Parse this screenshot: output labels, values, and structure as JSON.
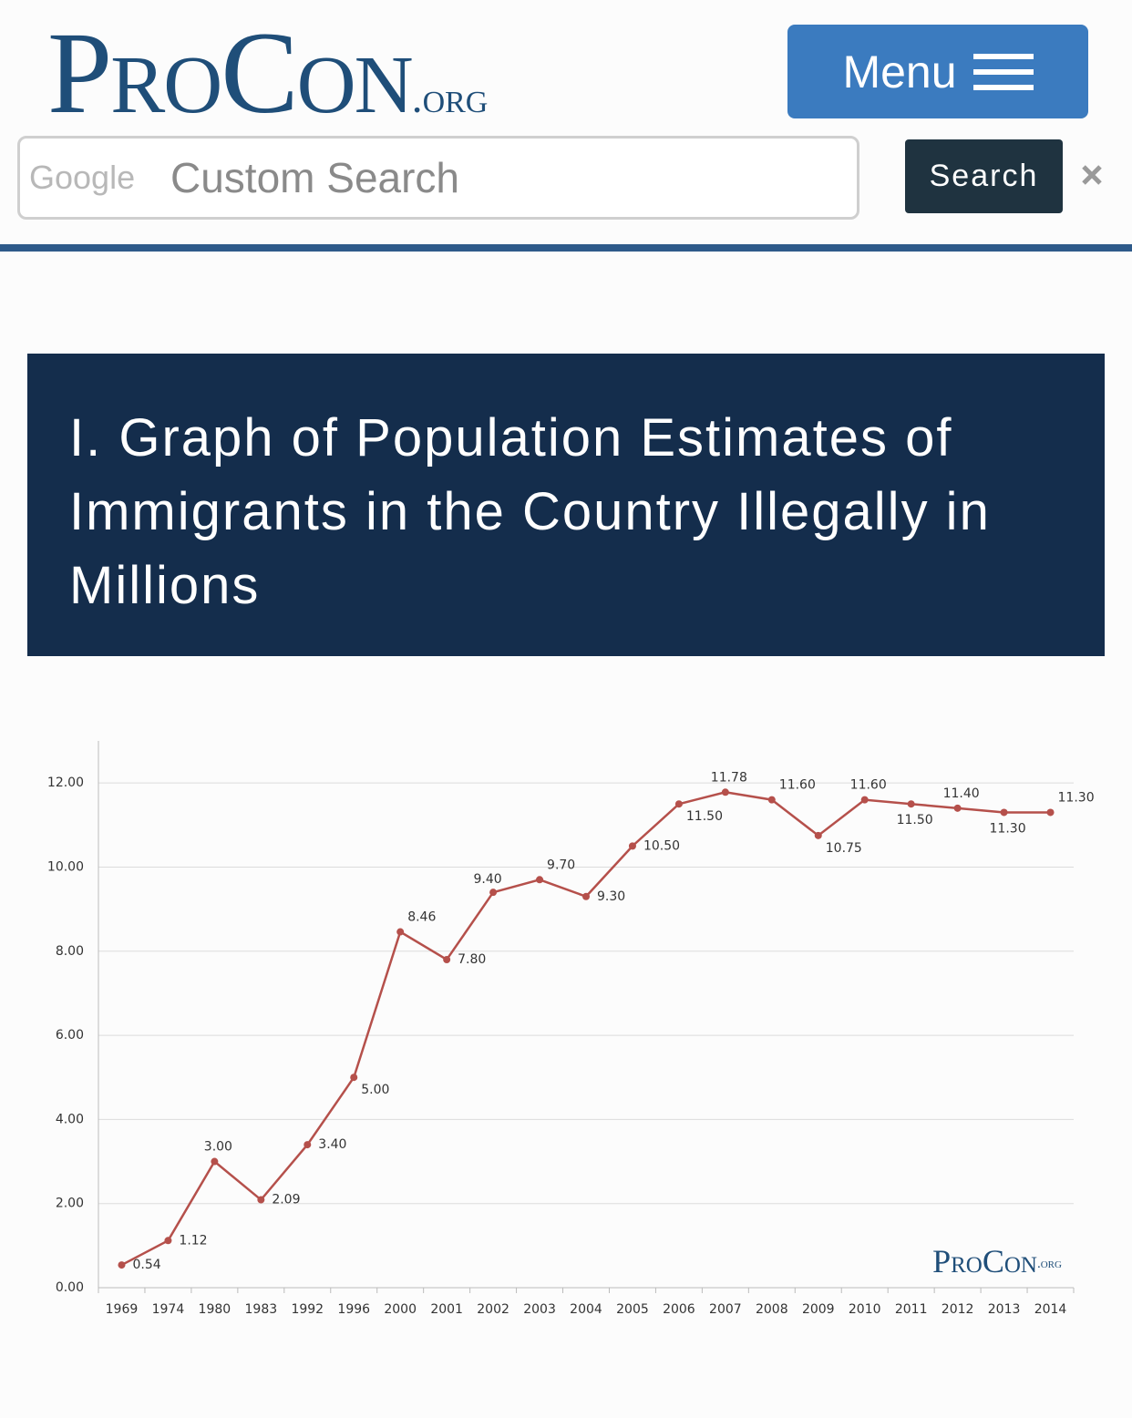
{
  "logo": {
    "name": "ProCon",
    "suffix": ".org"
  },
  "menu": {
    "label": "Menu"
  },
  "search": {
    "brand": "Google",
    "placeholder": "Custom Search",
    "button": "Search"
  },
  "section_title": "I. Graph of Population Estimates of Immigrants in the Country Illegally in Millions",
  "chart_data": {
    "type": "line",
    "categories": [
      "1969",
      "1974",
      "1980",
      "1983",
      "1992",
      "1996",
      "2000",
      "2001",
      "2002",
      "2003",
      "2004",
      "2005",
      "2006",
      "2007",
      "2008",
      "2009",
      "2010",
      "2011",
      "2012",
      "2013",
      "2014"
    ],
    "series": [
      {
        "color": "#b5504b",
        "values": [
          0.54,
          1.12,
          3.0,
          2.09,
          3.4,
          5.0,
          8.46,
          7.8,
          9.4,
          9.7,
          9.3,
          10.5,
          11.5,
          11.78,
          11.6,
          10.75,
          11.6,
          11.5,
          11.4,
          11.3,
          11.3
        ],
        "value_labels": [
          "0.54",
          "1.12",
          "3.00",
          "2.09",
          "3.40",
          "5.00",
          "8.46",
          "7.80",
          "9.40",
          "9.70",
          "9.30",
          "10.50",
          "11.50",
          "11.78",
          "11.60",
          "10.75",
          "11.60",
          "11.50",
          "11.40",
          "11.30",
          "11.30"
        ]
      }
    ],
    "ylim": [
      0,
      13
    ],
    "yticks": [
      {
        "value": 0,
        "label": "0.00"
      },
      {
        "value": 2,
        "label": "2.00"
      },
      {
        "value": 4,
        "label": "4.00"
      },
      {
        "value": 6,
        "label": "6.00"
      },
      {
        "value": 8,
        "label": "8.00"
      },
      {
        "value": 10,
        "label": "10.00"
      },
      {
        "value": 12,
        "label": "12.00"
      }
    ],
    "grid": true
  }
}
